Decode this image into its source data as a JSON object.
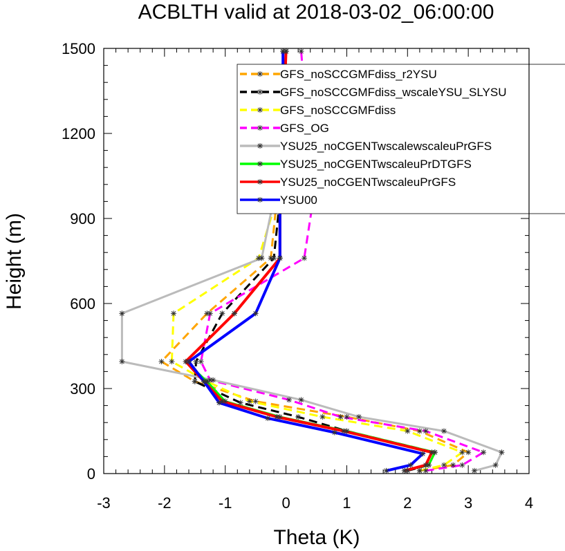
{
  "chart_data": {
    "type": "line",
    "title": "ACBLTH valid at 2018-03-02_06:00:00",
    "xlabel": "Theta (K)",
    "ylabel": "Height (m)",
    "xlim": [
      -3,
      4
    ],
    "ylim": [
      0,
      1500
    ],
    "xticks": [
      -3,
      -2,
      -1,
      0,
      1,
      2,
      3,
      4
    ],
    "yticks": [
      0,
      300,
      600,
      900,
      1200,
      1500
    ],
    "x_tick_labels": [
      "-3",
      "-2",
      "-1",
      "0",
      "1",
      "2",
      "3",
      "4"
    ],
    "y_tick_labels": [
      "0",
      "300",
      "600",
      "900",
      "1200",
      "1500"
    ],
    "grid": false,
    "legend_placement": "top-right",
    "series": [
      {
        "name": "GFS_noSCCGMFdiss_r2YSU",
        "color": "#ffa500",
        "dash": "dashed",
        "x": [
          2.2,
          2.75,
          3.0,
          2.2,
          1.0,
          -0.5,
          -1.5,
          -2.05,
          -1.3,
          -0.25,
          -0.15,
          -0.05,
          0.0
        ],
        "y": [
          10,
          30,
          75,
          150,
          200,
          255,
          325,
          395,
          565,
          760,
          970,
          1210,
          1490
        ]
      },
      {
        "name": "GFS_noSCCGMFdiss_wscaleYSU_SLYSU",
        "color": "#000000",
        "dash": "dashed",
        "x": [
          2.0,
          2.35,
          2.45,
          1.0,
          0.2,
          -0.75,
          -1.5,
          -1.48,
          -1.05,
          -0.2,
          -0.1,
          -0.05,
          0.0
        ],
        "y": [
          10,
          30,
          75,
          150,
          200,
          250,
          325,
          395,
          565,
          760,
          970,
          1210,
          1490
        ]
      },
      {
        "name": "GFS_noSCCGMFdiss",
        "color": "#ffff00",
        "dash": "dashed",
        "x": [
          2.2,
          2.6,
          2.9,
          2.0,
          0.6,
          -0.6,
          -1.3,
          -1.88,
          -1.85,
          -0.45,
          -0.15,
          -0.05,
          -0.05
        ],
        "y": [
          10,
          30,
          75,
          150,
          200,
          255,
          325,
          395,
          565,
          760,
          970,
          1210,
          1490
        ]
      },
      {
        "name": "GFS_OG",
        "color": "#ff00ff",
        "dash": "dashed",
        "x": [
          2.3,
          2.9,
          3.25,
          2.3,
          0.9,
          0.05,
          -1.25,
          -1.4,
          -1.25,
          0.3,
          0.45,
          0.35,
          0.25
        ],
        "y": [
          10,
          30,
          75,
          150,
          200,
          260,
          330,
          395,
          565,
          760,
          970,
          1210,
          1490
        ]
      },
      {
        "name": "YSU25_noCGENTwscalewscaleuPrGFS",
        "color": "#bbbbbb",
        "dash": "solid",
        "x": [
          3.1,
          3.45,
          3.55,
          2.6,
          1.2,
          0.25,
          -1.2,
          -2.7,
          -2.7,
          -0.4,
          -0.2,
          -0.1,
          0.0
        ],
        "y": [
          10,
          30,
          75,
          150,
          200,
          260,
          330,
          395,
          565,
          760,
          970,
          1210,
          1490
        ]
      },
      {
        "name": "YSU25_noCGENTwscaleuPrDTGFS",
        "color": "#00ff00",
        "dash": "solid",
        "x": [
          1.95,
          2.35,
          2.45,
          1.0,
          -0.1,
          -1.0,
          -1.3,
          -1.65,
          -0.85,
          -0.1,
          -0.1,
          -0.05,
          0.0
        ],
        "y": [
          10,
          30,
          75,
          150,
          200,
          255,
          325,
          395,
          565,
          760,
          970,
          1210,
          1490
        ]
      },
      {
        "name": "YSU25_noCGENTwscaleuPrGFS",
        "color": "#ff0000",
        "dash": "solid",
        "x": [
          1.95,
          2.3,
          2.4,
          0.95,
          -0.15,
          -1.05,
          -1.35,
          -1.65,
          -0.85,
          -0.1,
          -0.1,
          -0.05,
          0.0
        ],
        "y": [
          10,
          30,
          75,
          150,
          200,
          255,
          325,
          395,
          565,
          760,
          970,
          1210,
          1490
        ]
      },
      {
        "name": "YSU00",
        "color": "#0000ff",
        "dash": "solid",
        "x": [
          1.65,
          2.05,
          2.25,
          0.8,
          -0.3,
          -1.1,
          -1.35,
          -1.6,
          -0.5,
          -0.1,
          -0.1,
          -0.05,
          -0.05
        ],
        "y": [
          10,
          30,
          70,
          145,
          195,
          250,
          325,
          395,
          565,
          760,
          970,
          1210,
          1490
        ]
      }
    ]
  }
}
